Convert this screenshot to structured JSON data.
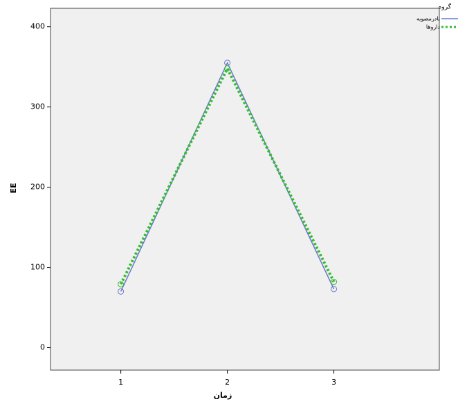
{
  "chart_data": {
    "type": "line",
    "x_label": "زمان",
    "y_label": "EE",
    "x": [
      1,
      2,
      3
    ],
    "xlim": [
      0.34,
      3.99
    ],
    "xticks": [
      1,
      2,
      3
    ],
    "ylim": [
      -28,
      423
    ],
    "yticks": [
      0,
      100,
      200,
      300,
      400
    ],
    "legend_title": "گروه",
    "legend": "right",
    "series": [
      {
        "name": "نادرمصویه",
        "color": "#6b77c8",
        "style": "solid",
        "marker": "circle",
        "values": [
          70,
          355,
          73
        ]
      },
      {
        "name": "داروها",
        "color": "#33bb33",
        "style": "dotted",
        "marker": "circle",
        "values": [
          79,
          348,
          82
        ]
      }
    ]
  }
}
